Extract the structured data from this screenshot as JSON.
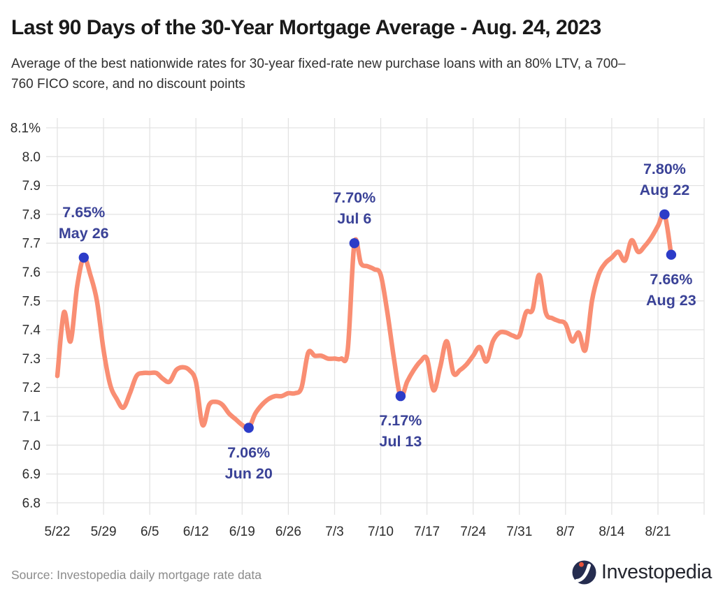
{
  "header": {
    "title": "Last 90 Days of the 30-Year Mortgage Average - Aug. 24, 2023",
    "subtitle_line1": "Average of the best nationwide rates for 30-year fixed-rate new purchase loans with an 80% LTV, a 700–",
    "subtitle_line2": "760 FICO score, and no discount points"
  },
  "footer": {
    "source": "Source: Investopedia daily mortgage rate data",
    "logo_text": "Investopedia"
  },
  "chart_data": {
    "type": "line",
    "title": "Last 90 Days of the 30-Year Mortgage Average - Aug. 24, 2023",
    "ylabel": "",
    "unit": "%",
    "ylim": [
      6.8,
      8.1
    ],
    "grid": true,
    "yticks": [
      "8.1%",
      "8.0",
      "7.9",
      "7.8",
      "7.7",
      "7.6",
      "7.5",
      "7.4",
      "7.3",
      "7.2",
      "7.1",
      "7.0",
      "6.9",
      "6.8"
    ],
    "xticks": [
      "5/22",
      "5/29",
      "6/5",
      "6/12",
      "6/19",
      "6/26",
      "7/3",
      "7/10",
      "7/17",
      "7/24",
      "7/31",
      "8/7",
      "8/14",
      "8/21"
    ],
    "colors": {
      "line": "#F98E73",
      "dot": "#2C3CC8",
      "annotation": "#3A4297",
      "grid": "#E3E3E3",
      "tick_text": "#2D2D2D",
      "logo_navy": "#252C4F",
      "logo_orange": "#E8533A"
    },
    "series": [
      {
        "name": "30-year mortgage average",
        "points": [
          [
            "5/22",
            7.24
          ],
          [
            "5/23",
            7.46
          ],
          [
            "5/24",
            7.36
          ],
          [
            "5/25",
            7.55
          ],
          [
            "5/26",
            7.65
          ],
          [
            "5/27",
            7.59
          ],
          [
            "5/28",
            7.5
          ],
          [
            "5/29",
            7.33
          ],
          [
            "5/30",
            7.21
          ],
          [
            "5/31",
            7.16
          ],
          [
            "6/1",
            7.13
          ],
          [
            "6/2",
            7.18
          ],
          [
            "6/3",
            7.24
          ],
          [
            "6/4",
            7.25
          ],
          [
            "6/5",
            7.25
          ],
          [
            "6/6",
            7.25
          ],
          [
            "6/7",
            7.23
          ],
          [
            "6/8",
            7.22
          ],
          [
            "6/9",
            7.26
          ],
          [
            "6/10",
            7.27
          ],
          [
            "6/11",
            7.26
          ],
          [
            "6/12",
            7.22
          ],
          [
            "6/13",
            7.07
          ],
          [
            "6/14",
            7.14
          ],
          [
            "6/15",
            7.15
          ],
          [
            "6/16",
            7.14
          ],
          [
            "6/17",
            7.11
          ],
          [
            "6/18",
            7.09
          ],
          [
            "6/19",
            7.07
          ],
          [
            "6/20",
            7.06
          ],
          [
            "6/21",
            7.11
          ],
          [
            "6/22",
            7.14
          ],
          [
            "6/23",
            7.16
          ],
          [
            "6/24",
            7.17
          ],
          [
            "6/25",
            7.17
          ],
          [
            "6/26",
            7.18
          ],
          [
            "6/27",
            7.18
          ],
          [
            "6/28",
            7.2
          ],
          [
            "6/29",
            7.32
          ],
          [
            "6/30",
            7.31
          ],
          [
            "7/1",
            7.31
          ],
          [
            "7/2",
            7.3
          ],
          [
            "7/3",
            7.3
          ],
          [
            "7/4",
            7.3
          ],
          [
            "7/5",
            7.33
          ],
          [
            "7/6",
            7.7
          ],
          [
            "7/7",
            7.63
          ],
          [
            "7/8",
            7.62
          ],
          [
            "7/9",
            7.61
          ],
          [
            "7/10",
            7.59
          ],
          [
            "7/11",
            7.46
          ],
          [
            "7/12",
            7.3
          ],
          [
            "7/13",
            7.17
          ],
          [
            "7/14",
            7.22
          ],
          [
            "7/15",
            7.26
          ],
          [
            "7/16",
            7.29
          ],
          [
            "7/17",
            7.3
          ],
          [
            "7/18",
            7.19
          ],
          [
            "7/19",
            7.27
          ],
          [
            "7/20",
            7.36
          ],
          [
            "7/21",
            7.25
          ],
          [
            "7/22",
            7.26
          ],
          [
            "7/23",
            7.28
          ],
          [
            "7/24",
            7.31
          ],
          [
            "7/25",
            7.34
          ],
          [
            "7/26",
            7.29
          ],
          [
            "7/27",
            7.36
          ],
          [
            "7/28",
            7.39
          ],
          [
            "7/29",
            7.39
          ],
          [
            "7/30",
            7.38
          ],
          [
            "7/31",
            7.38
          ],
          [
            "8/1",
            7.46
          ],
          [
            "8/2",
            7.47
          ],
          [
            "8/3",
            7.59
          ],
          [
            "8/4",
            7.46
          ],
          [
            "8/5",
            7.44
          ],
          [
            "8/6",
            7.43
          ],
          [
            "8/7",
            7.42
          ],
          [
            "8/8",
            7.36
          ],
          [
            "8/9",
            7.39
          ],
          [
            "8/10",
            7.33
          ],
          [
            "8/11",
            7.5
          ],
          [
            "8/12",
            7.59
          ],
          [
            "8/13",
            7.63
          ],
          [
            "8/14",
            7.65
          ],
          [
            "8/15",
            7.67
          ],
          [
            "8/16",
            7.64
          ],
          [
            "8/17",
            7.71
          ],
          [
            "8/18",
            7.67
          ],
          [
            "8/19",
            7.69
          ],
          [
            "8/20",
            7.72
          ],
          [
            "8/21",
            7.76
          ],
          [
            "8/22",
            7.8
          ],
          [
            "8/23",
            7.66
          ]
        ]
      }
    ],
    "annotations": [
      {
        "label": "7.65%",
        "date_label": "May 26",
        "x": "5/26",
        "y": 7.65,
        "placement": "above"
      },
      {
        "label": "7.06%",
        "date_label": "Jun 20",
        "x": "6/20",
        "y": 7.06,
        "placement": "below"
      },
      {
        "label": "7.70%",
        "date_label": "Jul 6",
        "x": "7/6",
        "y": 7.7,
        "placement": "above"
      },
      {
        "label": "7.17%",
        "date_label": "Jul 13",
        "x": "7/13",
        "y": 7.17,
        "placement": "below"
      },
      {
        "label": "7.80%",
        "date_label": "Aug 22",
        "x": "8/22",
        "y": 7.8,
        "placement": "above"
      },
      {
        "label": "7.66%",
        "date_label": "Aug 23",
        "x": "8/23",
        "y": 7.66,
        "placement": "below"
      }
    ]
  }
}
